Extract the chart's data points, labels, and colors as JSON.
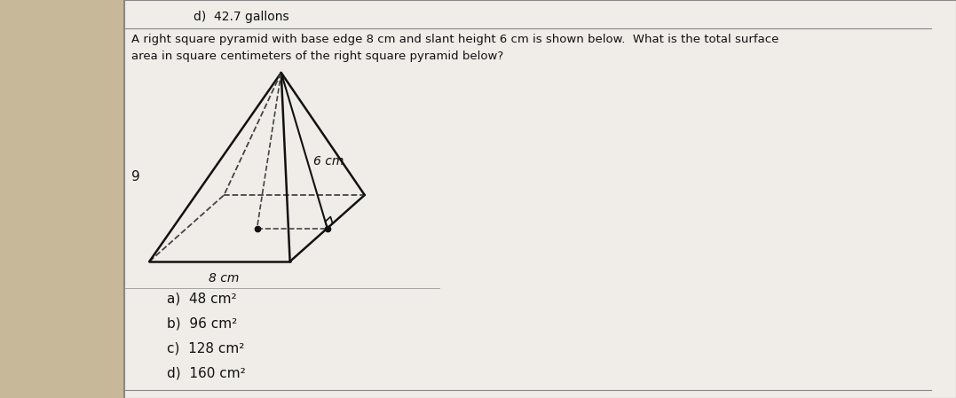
{
  "title_top": "d)  42.7 gallons",
  "question_line1": "A right square pyramid with base edge 8 cm and slant height 6 cm is shown below.  What is the total surface",
  "question_line2": "area in square centimeters of the right square pyramid below?",
  "question_number": "9",
  "choices": [
    "a)  48 cm²",
    "b)  96 cm²",
    "c)  128 cm²",
    "d)  160 cm²"
  ],
  "label_slant": "6 cm",
  "label_base": "8 cm",
  "bg_color": "#c8b89a",
  "paper_color": "#f0ede8",
  "line_color": "#111111",
  "dashed_color": "#444444",
  "text_color": "#111111",
  "border_color": "#888888"
}
